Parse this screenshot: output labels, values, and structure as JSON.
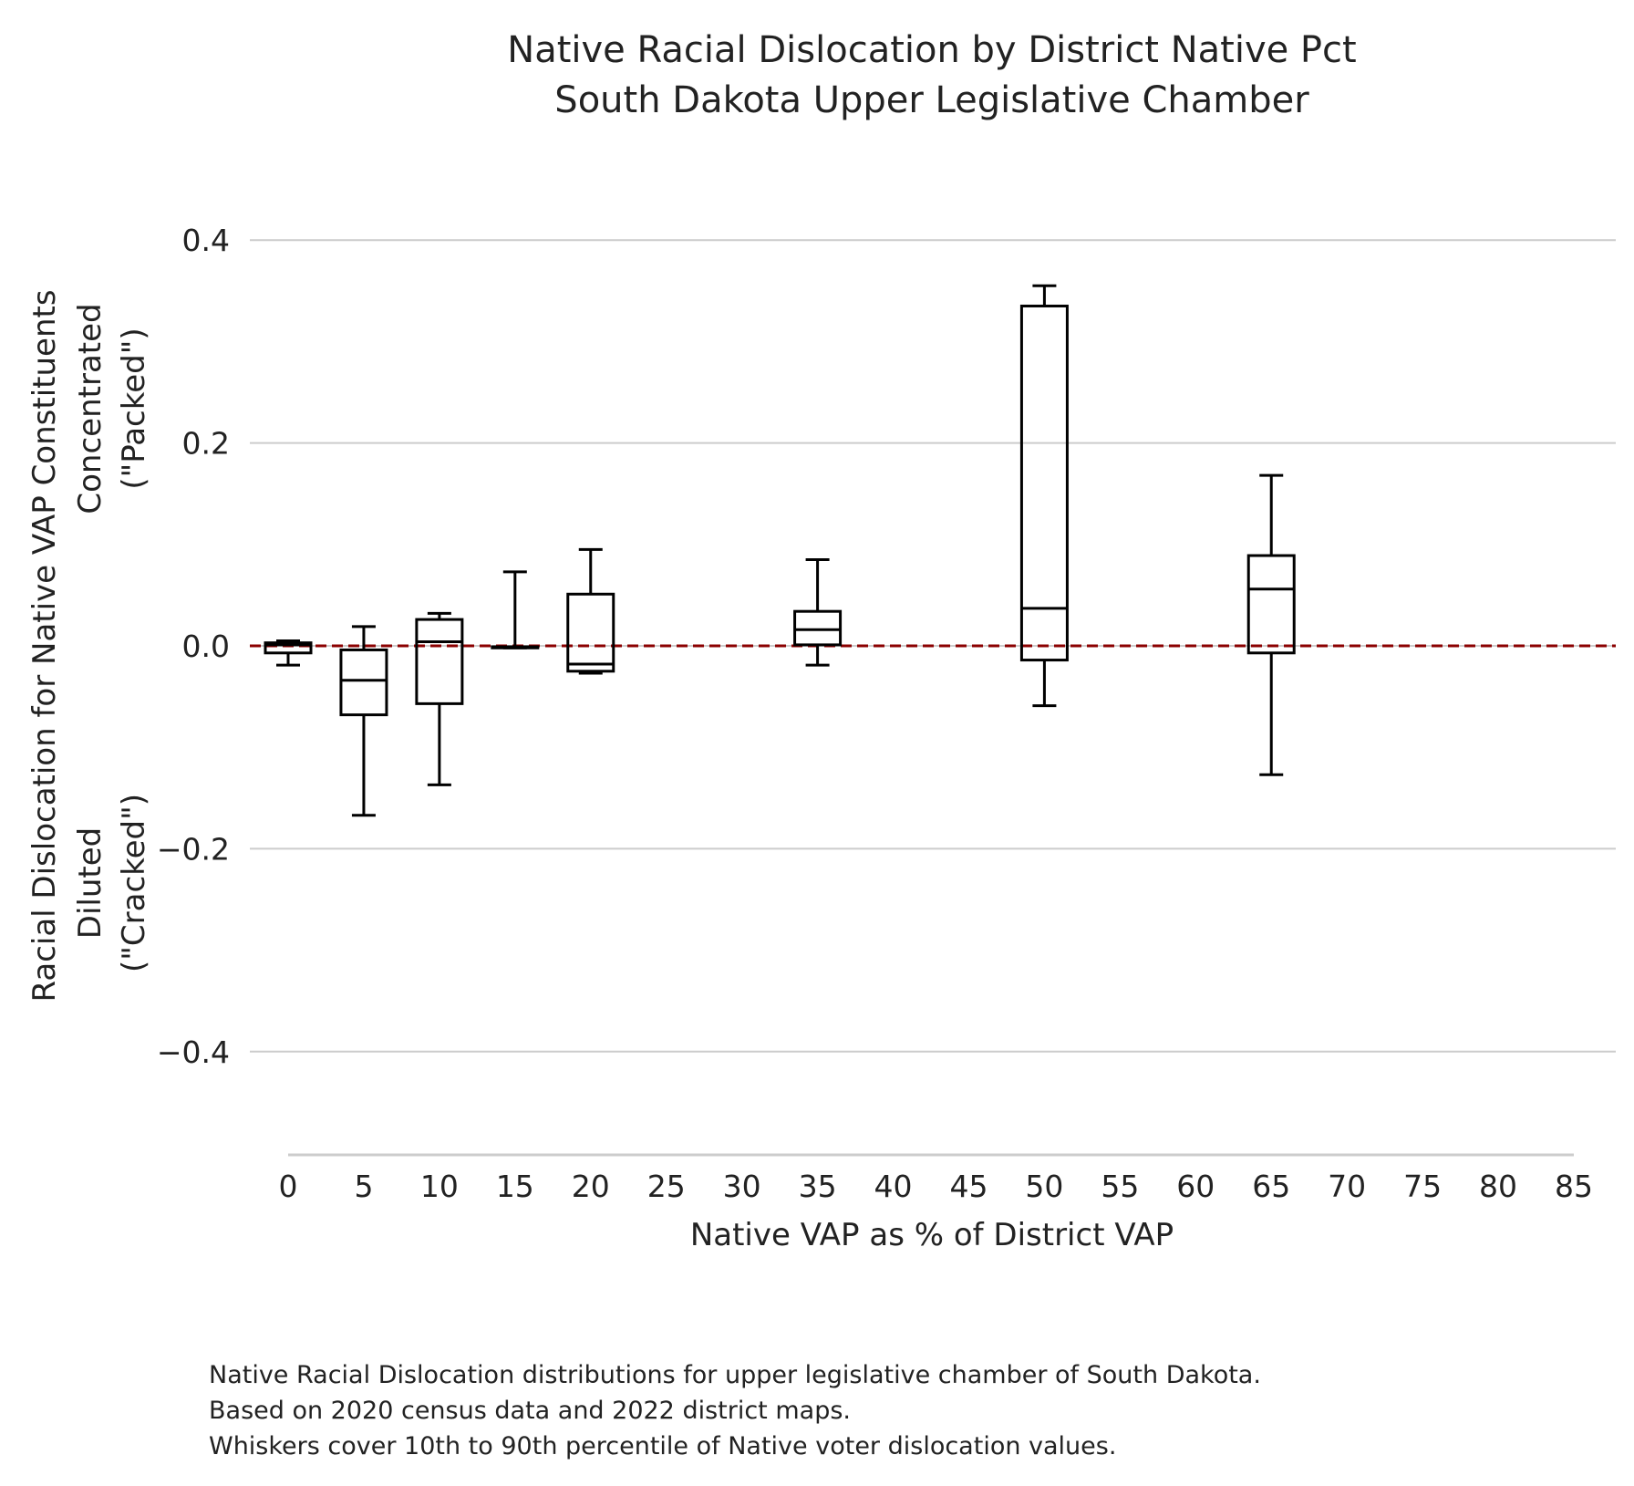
{
  "chart_data": {
    "type": "box",
    "title": [
      "Native Racial Dislocation by District Native Pct",
      "South Dakota Upper Legislative Chamber"
    ],
    "xlabel": "Native VAP as % of District VAP",
    "ylabel": [
      "Racial Dislocation for Native VAP Constituents",
      "Diluted\n(\"Cracked\")",
      "Concentrated\n(\"Packed\")"
    ],
    "x_ticks": [
      0,
      5,
      10,
      15,
      20,
      25,
      30,
      35,
      40,
      45,
      50,
      55,
      60,
      65,
      70,
      75,
      80,
      85
    ],
    "x_tick_labels": [
      "0",
      "5",
      "10",
      "15",
      "20",
      "25",
      "30",
      "35",
      "40",
      "45",
      "50",
      "55",
      "60",
      "65",
      "70",
      "75",
      "80",
      "85"
    ],
    "y_ticks": [
      -0.4,
      -0.2,
      0.0,
      0.2,
      0.4
    ],
    "y_tick_labels": [
      "−0.4",
      "−0.2",
      "0.0",
      "0.2",
      "0.4"
    ],
    "xlim": [
      -2.5,
      87.5
    ],
    "ylim": [
      -0.5,
      0.45
    ],
    "grid": "horizontal",
    "reference_line": {
      "y": 0,
      "color": "#8b0000",
      "style": "dashed"
    },
    "boxes": [
      {
        "x": 0,
        "whisker_low": -0.019,
        "q1": -0.007,
        "median": 0.001,
        "q3": 0.003,
        "whisker_high": 0.005
      },
      {
        "x": 5,
        "whisker_low": -0.167,
        "q1": -0.068,
        "median": -0.034,
        "q3": -0.004,
        "whisker_high": 0.019
      },
      {
        "x": 10,
        "whisker_low": -0.137,
        "q1": -0.057,
        "median": 0.004,
        "q3": 0.026,
        "whisker_high": 0.032
      },
      {
        "x": 15,
        "whisker_low": -0.002,
        "q1": -0.002,
        "median": -0.001,
        "q3": -0.001,
        "whisker_high": 0.073
      },
      {
        "x": 20,
        "whisker_low": -0.027,
        "q1": -0.025,
        "median": -0.018,
        "q3": 0.051,
        "whisker_high": 0.095
      },
      {
        "x": 35,
        "whisker_low": -0.019,
        "q1": 0.001,
        "median": 0.016,
        "q3": 0.034,
        "whisker_high": 0.085
      },
      {
        "x": 50,
        "whisker_low": -0.059,
        "q1": -0.014,
        "median": 0.037,
        "q3": 0.335,
        "whisker_high": 0.355
      },
      {
        "x": 65,
        "whisker_low": -0.127,
        "q1": -0.007,
        "median": 0.056,
        "q3": 0.089,
        "whisker_high": 0.168
      }
    ],
    "colors": {
      "box": "#000000",
      "grid": "#cccccc",
      "reference": "#8b0000"
    }
  },
  "caption": [
    "Native Racial Dislocation distributions for upper legislative chamber of South Dakota.",
    "Based on 2020 census data and 2022 district maps.",
    "Whiskers cover 10th to 90th percentile of Native voter dislocation values."
  ]
}
